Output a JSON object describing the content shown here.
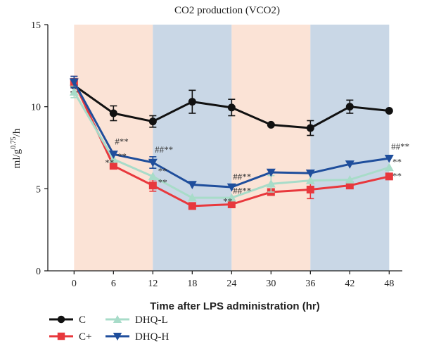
{
  "chart_data": {
    "type": "line",
    "title": "CO2 production (VCO2)",
    "xlabel": "Time after LPS administration (hr)",
    "ylabel_main": "ml/g",
    "ylabel_sup": "0.75",
    "ylabel_tail": "/h",
    "xlim": [
      -4,
      50
    ],
    "ylim": [
      0,
      15
    ],
    "xticks": [
      0,
      6,
      12,
      18,
      24,
      30,
      36,
      42,
      48
    ],
    "yticks": [
      0,
      5,
      10,
      15
    ],
    "x": [
      0,
      6,
      12,
      18,
      24,
      30,
      36,
      42,
      48
    ],
    "bands": [
      {
        "from": 0,
        "to": 12,
        "color": "#fbe3d6"
      },
      {
        "from": 12,
        "to": 24,
        "color": "#c9d7e6"
      },
      {
        "from": 24,
        "to": 36,
        "color": "#fbe3d6"
      },
      {
        "from": 36,
        "to": 48,
        "color": "#c9d7e6"
      }
    ],
    "series": [
      {
        "name": "C",
        "color": "#111111",
        "marker": "circle",
        "values": [
          11.3,
          9.6,
          9.1,
          10.3,
          9.95,
          8.9,
          8.7,
          10.0,
          9.75
        ],
        "errors": [
          0.4,
          0.45,
          0.35,
          0.7,
          0.5,
          0.0,
          0.45,
          0.4,
          0.0
        ]
      },
      {
        "name": "C+",
        "color": "#e8383d",
        "marker": "square",
        "values": [
          11.5,
          6.4,
          5.2,
          3.95,
          4.05,
          4.8,
          4.95,
          5.2,
          5.75
        ],
        "errors": [
          0.35,
          0.0,
          0.35,
          0.0,
          0.0,
          0.0,
          0.55,
          0.0,
          0.0
        ]
      },
      {
        "name": "DHQ-L",
        "color": "#a8dcc9",
        "marker": "triangle-up",
        "values": [
          10.9,
          6.8,
          5.75,
          4.45,
          4.45,
          5.3,
          5.5,
          5.55,
          6.3
        ],
        "errors": [
          0.35,
          0.0,
          0.0,
          0.0,
          0.0,
          0.5,
          0.0,
          0.0,
          0.0
        ]
      },
      {
        "name": "DHQ-H",
        "color": "#1f4e9c",
        "marker": "triangle-down",
        "values": [
          11.5,
          7.1,
          6.6,
          5.25,
          5.1,
          6.0,
          5.95,
          6.5,
          6.85
        ],
        "errors": [
          0.35,
          0.0,
          0.35,
          0.0,
          0.0,
          0.0,
          0.0,
          0.0,
          0.0
        ]
      }
    ],
    "annotations": [
      {
        "text": "#**",
        "x": 6.2,
        "y": 7.7
      },
      {
        "text": "**",
        "x": 6.6,
        "y": 6.8
      },
      {
        "text": "**",
        "x": 4.7,
        "y": 6.4
      },
      {
        "text": "##**",
        "x": 12.3,
        "y": 7.2
      },
      {
        "text": "**",
        "x": 12.8,
        "y": 5.9
      },
      {
        "text": "**",
        "x": 12.8,
        "y": 5.2
      },
      {
        "text": "##**",
        "x": 24.2,
        "y": 5.55
      },
      {
        "text": "##**",
        "x": 24.2,
        "y": 4.7
      },
      {
        "text": "**",
        "x": 22.7,
        "y": 4.05
      },
      {
        "text": "##**",
        "x": 48.3,
        "y": 7.4
      },
      {
        "text": "**",
        "x": 48.5,
        "y": 6.45
      },
      {
        "text": "**",
        "x": 48.5,
        "y": 5.6
      }
    ],
    "legend_position": "bottom-left"
  }
}
